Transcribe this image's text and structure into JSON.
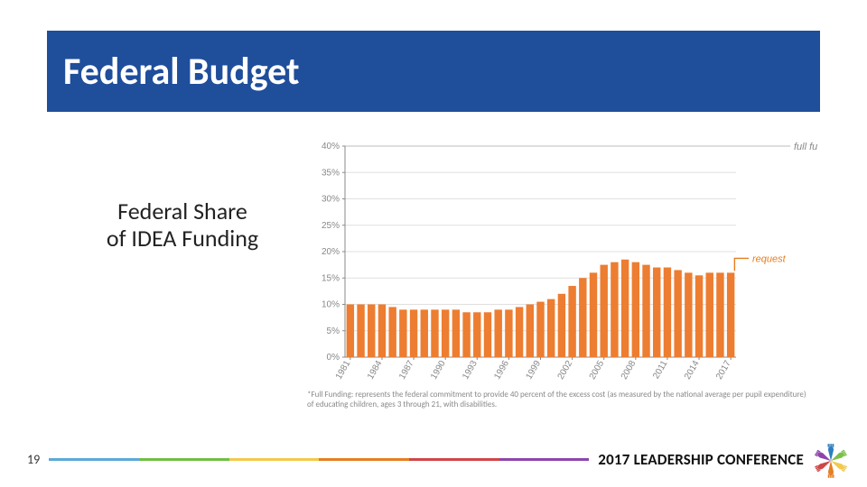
{
  "title": "Federal Budget",
  "subtitle_line1": "Federal Share",
  "subtitle_line2": "of IDEA Funding",
  "footnote": "*Full Funding: represents the federal commitment to provide 40 percent of the excess cost (as measured by the national average per pupil expenditure) of educating children, ages 3 through 21, with disabilities.",
  "page_number": "19",
  "conference_label": "2017 LEADERSHIP CONFERENCE",
  "title_band_bg": "#1f4e9b",
  "title_text_color": "#ffffff",
  "subtitle_color": "#222222",
  "footnote_color": "#888888",
  "stripe_colors": [
    "#5aa9d6",
    "#6fbf44",
    "#f2c94c",
    "#e67e22",
    "#cf4647",
    "#8e44ad"
  ],
  "logo_hand_colors": [
    "#2d7dbf",
    "#7cc04b",
    "#f2c94c",
    "#e67e22",
    "#cf4647",
    "#8e44ad"
  ],
  "chart": {
    "type": "bar",
    "full_funding_label": "full funding*",
    "request_label": "request",
    "request_color": "#e67e22",
    "bar_color": "#ed7d31",
    "axis_text_color": "#888888",
    "grid_color": "#e0e0e0",
    "full_funding_line_color": "#bdbdbd",
    "background_color": "#ffffff",
    "ylim": [
      0,
      40
    ],
    "ytick_step": 5,
    "yticklabels": [
      "0%",
      "5%",
      "10%",
      "15%",
      "20%",
      "25%",
      "30%",
      "35%",
      "40%"
    ],
    "years": [
      1981,
      1982,
      1983,
      1984,
      1985,
      1986,
      1987,
      1988,
      1989,
      1990,
      1991,
      1992,
      1993,
      1994,
      1995,
      1996,
      1997,
      1998,
      1999,
      2000,
      2001,
      2002,
      2003,
      2004,
      2005,
      2006,
      2007,
      2008,
      2009,
      2010,
      2011,
      2012,
      2013,
      2014,
      2015,
      2016,
      2017
    ],
    "xticklabel_years": [
      1981,
      1984,
      1987,
      1990,
      1993,
      1996,
      1999,
      2002,
      2005,
      2008,
      2011,
      2014,
      2017
    ],
    "values": [
      10,
      10,
      10,
      10,
      9.5,
      9,
      9,
      9,
      9,
      9,
      9,
      8.5,
      8.5,
      8.5,
      9,
      9,
      9.5,
      10,
      10.5,
      11,
      12,
      13.5,
      15,
      16,
      17.5,
      18,
      18.5,
      18,
      17.5,
      17,
      17,
      16.5,
      16,
      15.5,
      16,
      16,
      16
    ],
    "bar_width_ratio": 0.72,
    "axis_fontsize": 10,
    "label_fontsize": 11,
    "title_fontsize": 0
  }
}
